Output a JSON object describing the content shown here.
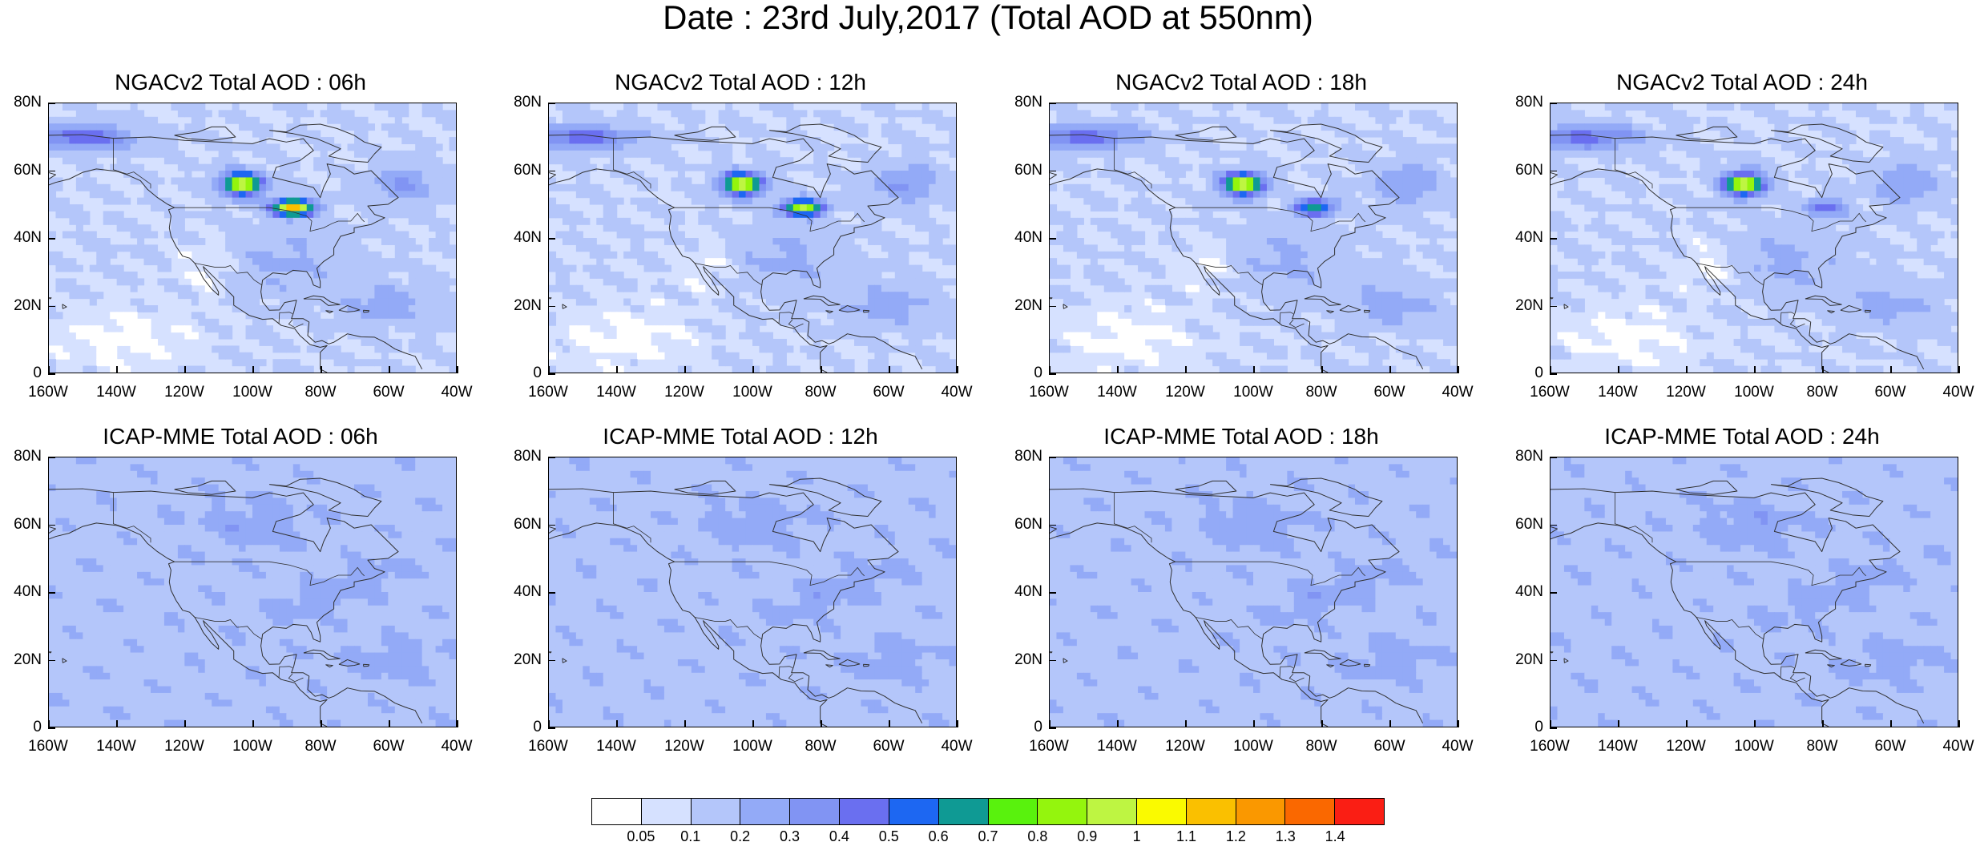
{
  "title": "Date : 23rd July,2017 (Total AOD at 550nm)",
  "panels": [
    {
      "title": "NGACv2 Total AOD : 06h",
      "model": "ngac"
    },
    {
      "title": "NGACv2 Total AOD : 12h",
      "model": "ngac"
    },
    {
      "title": "NGACv2 Total AOD : 18h",
      "model": "ngac"
    },
    {
      "title": "NGACv2 Total AOD : 24h",
      "model": "ngac"
    },
    {
      "title": "ICAP-MME Total AOD : 06h",
      "model": "icap"
    },
    {
      "title": "ICAP-MME Total AOD : 12h",
      "model": "icap"
    },
    {
      "title": "ICAP-MME Total AOD : 18h",
      "model": "icap"
    },
    {
      "title": "ICAP-MME Total AOD : 24h",
      "model": "icap"
    }
  ],
  "lat_ticks": [
    "80N",
    "60N",
    "40N",
    "20N",
    "0"
  ],
  "lon_ticks": [
    "160W",
    "140W",
    "120W",
    "100W",
    "80W",
    "60W",
    "40W"
  ],
  "map_extent": {
    "lon": [
      -160,
      -40
    ],
    "lat": [
      0,
      80
    ]
  },
  "colorbar": {
    "colors": [
      "#ffffff",
      "#d6e1ff",
      "#b4c6fa",
      "#93aaf7",
      "#8194f3",
      "#6a6ff0",
      "#1d67f2",
      "#0f9a94",
      "#59f20d",
      "#94f50d",
      "#bef542",
      "#fafa00",
      "#fac000",
      "#fa9800",
      "#fa6800",
      "#fa1e14"
    ],
    "labels": [
      "0.05",
      "0.1",
      "0.2",
      "0.3",
      "0.4",
      "0.5",
      "0.6",
      "0.7",
      "0.8",
      "0.9",
      "1",
      "1.1",
      "1.2",
      "1.3",
      "1.4"
    ]
  }
}
